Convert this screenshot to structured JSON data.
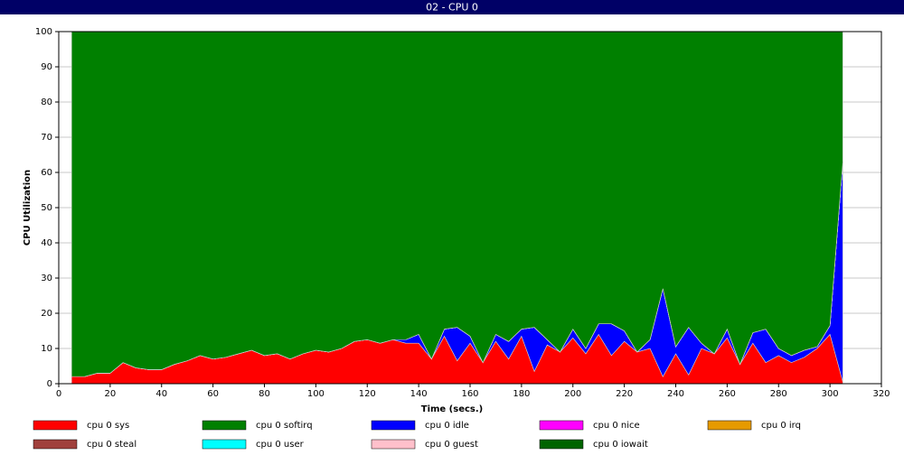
{
  "chart_data": {
    "type": "stacked_area",
    "title": "02 - CPU 0",
    "x_label": "Time (secs.)",
    "y_label": "CPU Utilization",
    "x": [
      5,
      10,
      15,
      20,
      25,
      30,
      35,
      40,
      45,
      50,
      55,
      60,
      65,
      70,
      75,
      80,
      85,
      90,
      95,
      100,
      105,
      110,
      115,
      120,
      125,
      130,
      135,
      140,
      145,
      150,
      155,
      160,
      165,
      170,
      175,
      180,
      185,
      190,
      195,
      200,
      205,
      210,
      215,
      220,
      225,
      230,
      235,
      240,
      245,
      250,
      255,
      260,
      265,
      270,
      275,
      280,
      285,
      290,
      295,
      300,
      305
    ],
    "xlim": [
      0,
      320
    ],
    "xticks": [
      0,
      20,
      40,
      60,
      80,
      100,
      120,
      140,
      160,
      180,
      200,
      220,
      240,
      260,
      280,
      300,
      320
    ],
    "ylim": [
      0,
      100
    ],
    "yticks": [
      0,
      10,
      20,
      30,
      40,
      50,
      60,
      70,
      80,
      90,
      100
    ],
    "grid": true,
    "series": [
      {
        "name": "cpu 0 sys",
        "color": "#ff0000",
        "values": [
          2,
          2,
          3,
          3,
          6,
          4.5,
          4,
          4,
          5.5,
          6.5,
          8,
          7,
          7.5,
          8.5,
          9.5,
          8,
          8.5,
          7,
          8.5,
          9.5,
          9,
          10,
          12,
          12.5,
          11.5,
          12.5,
          11.5,
          11.5,
          7,
          13.5,
          6.5,
          11.5,
          6,
          12,
          7,
          13.5,
          3.5,
          11,
          9,
          13,
          8.5,
          14,
          8,
          12,
          9,
          10,
          2,
          8.5,
          2.5,
          10,
          8.5,
          13,
          5.5,
          11.5,
          6,
          8,
          6,
          7.5,
          10,
          14,
          0.5
        ]
      },
      {
        "name": "cpu 0 softirq",
        "color": "#008000",
        "values": [
          98,
          98,
          97,
          97,
          94,
          95.5,
          96,
          96,
          94.5,
          93.5,
          92,
          93,
          92.5,
          91.5,
          90.5,
          92,
          91.5,
          93,
          91.5,
          90.5,
          91,
          90,
          88,
          87.5,
          88.5,
          87.5,
          87.5,
          86,
          93,
          84.5,
          84,
          86.5,
          94,
          86,
          88,
          84.5,
          84,
          87.5,
          91,
          84.5,
          90,
          83,
          83,
          85,
          91,
          87.5,
          73,
          89.5,
          84,
          88.5,
          91.5,
          84.5,
          94.5,
          85.5,
          84.5,
          90,
          92,
          90.5,
          89.5,
          83.5,
          37
        ]
      },
      {
        "name": "cpu 0 idle",
        "color": "#0000ff",
        "values": [
          0,
          0,
          0,
          0,
          0,
          0,
          0,
          0,
          0,
          0,
          0,
          0,
          0,
          0,
          0,
          0,
          0,
          0,
          0,
          0,
          0,
          0,
          0,
          0,
          0,
          0,
          1,
          2.5,
          0,
          2,
          9.5,
          2,
          0,
          2,
          5,
          2,
          12.5,
          1.5,
          0,
          2.5,
          1.5,
          3,
          9,
          3,
          0,
          2.5,
          25,
          2,
          13.5,
          1.5,
          0,
          2.5,
          0,
          3,
          9.5,
          2,
          2,
          2,
          0.5,
          2.5,
          62.5
        ]
      },
      {
        "name": "cpu 0 nice",
        "color": "#ff00ff",
        "values": [
          0,
          0,
          0,
          0,
          0,
          0,
          0,
          0,
          0,
          0,
          0,
          0,
          0,
          0,
          0,
          0,
          0,
          0,
          0,
          0,
          0,
          0,
          0,
          0,
          0,
          0,
          0,
          0,
          0,
          0,
          0,
          0,
          0,
          0,
          0,
          0,
          0,
          0,
          0,
          0,
          0,
          0,
          0,
          0,
          0,
          0,
          0,
          0,
          0,
          0,
          0,
          0,
          0,
          0,
          0,
          0,
          0,
          0,
          0,
          0,
          0
        ]
      },
      {
        "name": "cpu 0 irq",
        "color": "#e69a00",
        "values": [
          0,
          0,
          0,
          0,
          0,
          0,
          0,
          0,
          0,
          0,
          0,
          0,
          0,
          0,
          0,
          0,
          0,
          0,
          0,
          0,
          0,
          0,
          0,
          0,
          0,
          0,
          0,
          0,
          0,
          0,
          0,
          0,
          0,
          0,
          0,
          0,
          0,
          0,
          0,
          0,
          0,
          0,
          0,
          0,
          0,
          0,
          0,
          0,
          0,
          0,
          0,
          0,
          0,
          0,
          0,
          0,
          0,
          0,
          0,
          0,
          0
        ]
      },
      {
        "name": "cpu 0 steal",
        "color": "#a0403c",
        "values": [
          0,
          0,
          0,
          0,
          0,
          0,
          0,
          0,
          0,
          0,
          0,
          0,
          0,
          0,
          0,
          0,
          0,
          0,
          0,
          0,
          0,
          0,
          0,
          0,
          0,
          0,
          0,
          0,
          0,
          0,
          0,
          0,
          0,
          0,
          0,
          0,
          0,
          0,
          0,
          0,
          0,
          0,
          0,
          0,
          0,
          0,
          0,
          0,
          0,
          0,
          0,
          0,
          0,
          0,
          0,
          0,
          0,
          0,
          0,
          0,
          0
        ]
      },
      {
        "name": "cpu 0 user",
        "color": "#00ffff",
        "values": [
          0,
          0,
          0,
          0,
          0,
          0,
          0,
          0,
          0,
          0,
          0,
          0,
          0,
          0,
          0,
          0,
          0,
          0,
          0,
          0,
          0,
          0,
          0,
          0,
          0,
          0,
          0,
          0,
          0,
          0,
          0,
          0,
          0,
          0,
          0,
          0,
          0,
          0,
          0,
          0,
          0,
          0,
          0,
          0,
          0,
          0,
          0,
          0,
          0,
          0,
          0,
          0,
          0,
          0,
          0,
          0,
          0,
          0,
          0,
          0,
          0
        ]
      },
      {
        "name": "cpu 0 guest",
        "color": "#ffc0cb",
        "values": [
          0,
          0,
          0,
          0,
          0,
          0,
          0,
          0,
          0,
          0,
          0,
          0,
          0,
          0,
          0,
          0,
          0,
          0,
          0,
          0,
          0,
          0,
          0,
          0,
          0,
          0,
          0,
          0,
          0,
          0,
          0,
          0,
          0,
          0,
          0,
          0,
          0,
          0,
          0,
          0,
          0,
          0,
          0,
          0,
          0,
          0,
          0,
          0,
          0,
          0,
          0,
          0,
          0,
          0,
          0,
          0,
          0,
          0,
          0,
          0,
          0
        ]
      },
      {
        "name": "cpu 0 iowait",
        "color": "#006400",
        "values": [
          0,
          0,
          0,
          0,
          0,
          0,
          0,
          0,
          0,
          0,
          0,
          0,
          0,
          0,
          0,
          0,
          0,
          0,
          0,
          0,
          0,
          0,
          0,
          0,
          0,
          0,
          0,
          0,
          0,
          0,
          0,
          0,
          0,
          0,
          0,
          0,
          0,
          0,
          0,
          0,
          0,
          0,
          0,
          0,
          0,
          0,
          0,
          0,
          0,
          0,
          0,
          0,
          0,
          0,
          0,
          0,
          0,
          0,
          0,
          0,
          0
        ]
      }
    ]
  }
}
